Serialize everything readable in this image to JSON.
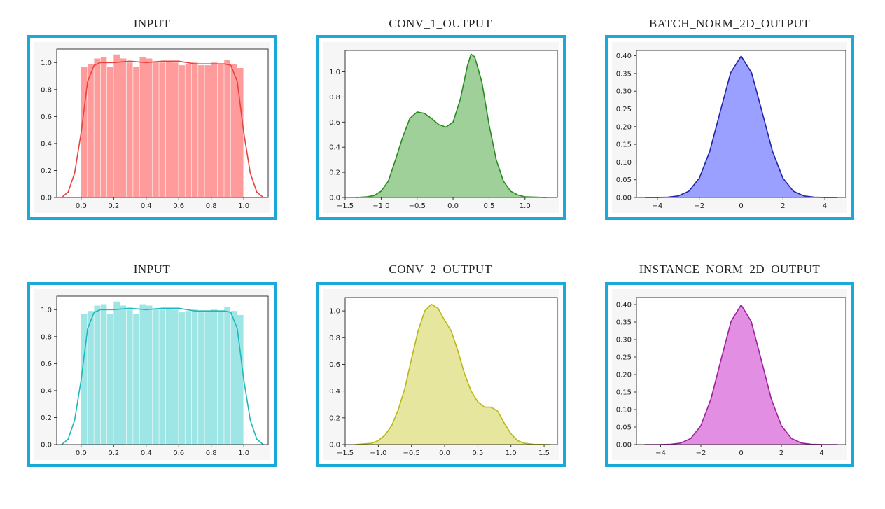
{
  "panels": [
    {
      "title": "INPUT"
    },
    {
      "title": "CONV_1_OUTPUT"
    },
    {
      "title": "BATCH_NORM_2D_OUTPUT"
    },
    {
      "title": "INPUT"
    },
    {
      "title": "CONV_2_OUTPUT"
    },
    {
      "title": "INSTANCE_NORM_2D_OUTPUT"
    }
  ],
  "chart_data": [
    {
      "type": "area",
      "title": "INPUT",
      "xlabel": "",
      "ylabel": "",
      "color": "#e8413e",
      "fill": "#ff9b9b",
      "xlim": [
        -0.15,
        1.15
      ],
      "ylim": [
        0,
        1.1
      ],
      "xticks": [
        0.0,
        0.2,
        0.4,
        0.6,
        0.8,
        1.0
      ],
      "xtick_labels": [
        "0.0",
        "0.2",
        "0.4",
        "0.6",
        "0.8",
        "1.0"
      ],
      "yticks": [
        0.0,
        0.2,
        0.4,
        0.6,
        0.8,
        1.0
      ],
      "ytick_labels": [
        "0.0",
        "0.2",
        "0.4",
        "0.6",
        "0.8",
        "1.0"
      ],
      "hist": {
        "bins": [
          0.0,
          0.04,
          0.08,
          0.12,
          0.16,
          0.2,
          0.24,
          0.28,
          0.32,
          0.36,
          0.4,
          0.44,
          0.48,
          0.52,
          0.56,
          0.6,
          0.64,
          0.68,
          0.72,
          0.76,
          0.8,
          0.84,
          0.88,
          0.92,
          0.96,
          1.0
        ],
        "values": [
          0.97,
          0.99,
          1.03,
          1.04,
          0.97,
          1.06,
          1.03,
          1.0,
          0.97,
          1.04,
          1.03,
          1.01,
          1.0,
          1.01,
          1.0,
          0.98,
          0.99,
          1.0,
          0.98,
          0.98,
          1.0,
          0.99,
          1.02,
          0.99,
          0.96
        ]
      },
      "kde": {
        "x": [
          -0.12,
          -0.08,
          -0.04,
          0.0,
          0.04,
          0.08,
          0.12,
          0.2,
          0.3,
          0.4,
          0.5,
          0.6,
          0.7,
          0.8,
          0.88,
          0.92,
          0.96,
          1.0,
          1.04,
          1.08,
          1.12
        ],
        "y": [
          0.0,
          0.04,
          0.18,
          0.48,
          0.86,
          0.98,
          1.0,
          1.0,
          1.01,
          1.0,
          1.01,
          1.01,
          0.99,
          0.99,
          0.99,
          0.98,
          0.86,
          0.48,
          0.18,
          0.04,
          0.0
        ]
      }
    },
    {
      "type": "area",
      "title": "CONV_1_OUTPUT",
      "xlabel": "",
      "ylabel": "",
      "color": "#2a8a22",
      "fill": "#9fd09a",
      "xlim": [
        -1.5,
        1.45
      ],
      "ylim": [
        0,
        1.17
      ],
      "xticks": [
        -1.5,
        -1.0,
        -0.5,
        0.0,
        0.5,
        1.0
      ],
      "xtick_labels": [
        "−1.5",
        "−1.0",
        "−0.5",
        "0.0",
        "0.5",
        "1.0"
      ],
      "yticks": [
        0.0,
        0.2,
        0.4,
        0.6,
        0.8,
        1.0
      ],
      "ytick_labels": [
        "0.0",
        "0.2",
        "0.4",
        "0.6",
        "0.8",
        "1.0"
      ],
      "kde": {
        "x": [
          -1.35,
          -1.2,
          -1.1,
          -1.0,
          -0.9,
          -0.8,
          -0.7,
          -0.6,
          -0.5,
          -0.4,
          -0.3,
          -0.2,
          -0.1,
          0.0,
          0.1,
          0.2,
          0.25,
          0.3,
          0.4,
          0.5,
          0.6,
          0.7,
          0.8,
          0.9,
          1.0,
          1.3
        ],
        "y": [
          0.0,
          0.005,
          0.015,
          0.05,
          0.13,
          0.3,
          0.48,
          0.63,
          0.68,
          0.67,
          0.63,
          0.58,
          0.56,
          0.6,
          0.78,
          1.05,
          1.14,
          1.12,
          0.92,
          0.58,
          0.3,
          0.13,
          0.05,
          0.02,
          0.005,
          0.0
        ]
      }
    },
    {
      "type": "area",
      "title": "BATCH_NORM_2D_OUTPUT",
      "xlabel": "",
      "ylabel": "",
      "color": "#2323a8",
      "fill": "#9aa0ff",
      "xlim": [
        -5.0,
        5.0
      ],
      "ylim": [
        0,
        0.415
      ],
      "xticks": [
        -4,
        -2,
        0,
        2,
        4
      ],
      "xtick_labels": [
        "−4",
        "−2",
        "0",
        "2",
        "4"
      ],
      "yticks": [
        0.0,
        0.05,
        0.1,
        0.15,
        0.2,
        0.25,
        0.3,
        0.35,
        0.4
      ],
      "ytick_labels": [
        "0.00",
        "0.05",
        "0.10",
        "0.15",
        "0.20",
        "0.25",
        "0.30",
        "0.35",
        "0.40"
      ],
      "kde": {
        "x": [
          -4.6,
          -4.0,
          -3.5,
          -3.0,
          -2.5,
          -2.0,
          -1.5,
          -1.0,
          -0.5,
          0.0,
          0.5,
          1.0,
          1.5,
          2.0,
          2.5,
          3.0,
          3.5,
          4.0,
          4.6
        ],
        "y": [
          0.0,
          0.0001,
          0.0009,
          0.0044,
          0.0175,
          0.054,
          0.13,
          0.242,
          0.352,
          0.399,
          0.352,
          0.242,
          0.13,
          0.054,
          0.0175,
          0.0044,
          0.0009,
          0.0001,
          0.0
        ]
      }
    },
    {
      "type": "area",
      "title": "INPUT",
      "xlabel": "",
      "ylabel": "",
      "color": "#1cb8be",
      "fill": "#9ee5e5",
      "xlim": [
        -0.15,
        1.15
      ],
      "ylim": [
        0,
        1.1
      ],
      "xticks": [
        0.0,
        0.2,
        0.4,
        0.6,
        0.8,
        1.0
      ],
      "xtick_labels": [
        "0.0",
        "0.2",
        "0.4",
        "0.6",
        "0.8",
        "1.0"
      ],
      "yticks": [
        0.0,
        0.2,
        0.4,
        0.6,
        0.8,
        1.0
      ],
      "ytick_labels": [
        "0.0",
        "0.2",
        "0.4",
        "0.6",
        "0.8",
        "1.0"
      ],
      "hist": {
        "bins": [
          0.0,
          0.04,
          0.08,
          0.12,
          0.16,
          0.2,
          0.24,
          0.28,
          0.32,
          0.36,
          0.4,
          0.44,
          0.48,
          0.52,
          0.56,
          0.6,
          0.64,
          0.68,
          0.72,
          0.76,
          0.8,
          0.84,
          0.88,
          0.92,
          0.96,
          1.0
        ],
        "values": [
          0.97,
          0.99,
          1.03,
          1.04,
          0.97,
          1.06,
          1.03,
          1.0,
          0.97,
          1.04,
          1.03,
          1.01,
          1.0,
          1.01,
          1.0,
          0.98,
          0.99,
          1.0,
          0.98,
          0.98,
          1.0,
          0.99,
          1.02,
          0.99,
          0.96
        ]
      },
      "kde": {
        "x": [
          -0.12,
          -0.08,
          -0.04,
          0.0,
          0.04,
          0.08,
          0.12,
          0.2,
          0.3,
          0.4,
          0.5,
          0.6,
          0.7,
          0.8,
          0.88,
          0.92,
          0.96,
          1.0,
          1.04,
          1.08,
          1.12
        ],
        "y": [
          0.0,
          0.04,
          0.18,
          0.48,
          0.86,
          0.98,
          1.0,
          1.0,
          1.01,
          1.0,
          1.01,
          1.01,
          0.99,
          0.99,
          0.99,
          0.98,
          0.86,
          0.48,
          0.18,
          0.04,
          0.0
        ]
      }
    },
    {
      "type": "area",
      "title": "CONV_2_OUTPUT",
      "xlabel": "",
      "ylabel": "",
      "color": "#b8b818",
      "fill": "#e6e69e",
      "xlim": [
        -1.5,
        1.7
      ],
      "ylim": [
        0,
        1.1
      ],
      "xticks": [
        -1.5,
        -1.0,
        -0.5,
        0.0,
        0.5,
        1.0,
        1.5
      ],
      "xtick_labels": [
        "−1.5",
        "−1.0",
        "−0.5",
        "0.0",
        "0.5",
        "1.0",
        "1.5"
      ],
      "yticks": [
        0.0,
        0.2,
        0.4,
        0.6,
        0.8,
        1.0
      ],
      "ytick_labels": [
        "0.0",
        "0.2",
        "0.4",
        "0.6",
        "0.8",
        "1.0"
      ],
      "kde": {
        "x": [
          -1.35,
          -1.1,
          -1.0,
          -0.9,
          -0.8,
          -0.7,
          -0.6,
          -0.5,
          -0.4,
          -0.3,
          -0.2,
          -0.1,
          0.0,
          0.1,
          0.2,
          0.3,
          0.4,
          0.5,
          0.6,
          0.7,
          0.8,
          0.9,
          1.0,
          1.1,
          1.2,
          1.35,
          1.6
        ],
        "y": [
          0.0,
          0.01,
          0.03,
          0.07,
          0.14,
          0.26,
          0.42,
          0.64,
          0.85,
          1.0,
          1.05,
          1.02,
          0.93,
          0.85,
          0.7,
          0.53,
          0.4,
          0.32,
          0.28,
          0.28,
          0.25,
          0.16,
          0.08,
          0.03,
          0.01,
          0.002,
          0.0
        ]
      }
    },
    {
      "type": "area",
      "title": "INSTANCE_NORM_2D_OUTPUT",
      "xlabel": "",
      "ylabel": "",
      "color": "#a020a0",
      "fill": "#e28ee2",
      "xlim": [
        -5.2,
        5.2
      ],
      "ylim": [
        0,
        0.42
      ],
      "xticks": [
        -4,
        -2,
        0,
        2,
        4
      ],
      "xtick_labels": [
        "−4",
        "−2",
        "0",
        "2",
        "4"
      ],
      "yticks": [
        0.0,
        0.05,
        0.1,
        0.15,
        0.2,
        0.25,
        0.3,
        0.35,
        0.4
      ],
      "ytick_labels": [
        "0.00",
        "0.05",
        "0.10",
        "0.15",
        "0.20",
        "0.25",
        "0.30",
        "0.35",
        "0.40"
      ],
      "kde": {
        "x": [
          -4.8,
          -4.0,
          -3.5,
          -3.0,
          -2.5,
          -2.0,
          -1.5,
          -1.0,
          -0.5,
          0.0,
          0.5,
          1.0,
          1.5,
          2.0,
          2.5,
          3.0,
          3.5,
          4.0,
          4.8
        ],
        "y": [
          0.0,
          0.0001,
          0.0009,
          0.0044,
          0.0175,
          0.054,
          0.13,
          0.242,
          0.352,
          0.399,
          0.352,
          0.242,
          0.13,
          0.054,
          0.0175,
          0.0044,
          0.0009,
          0.0001,
          0.0
        ]
      }
    }
  ]
}
